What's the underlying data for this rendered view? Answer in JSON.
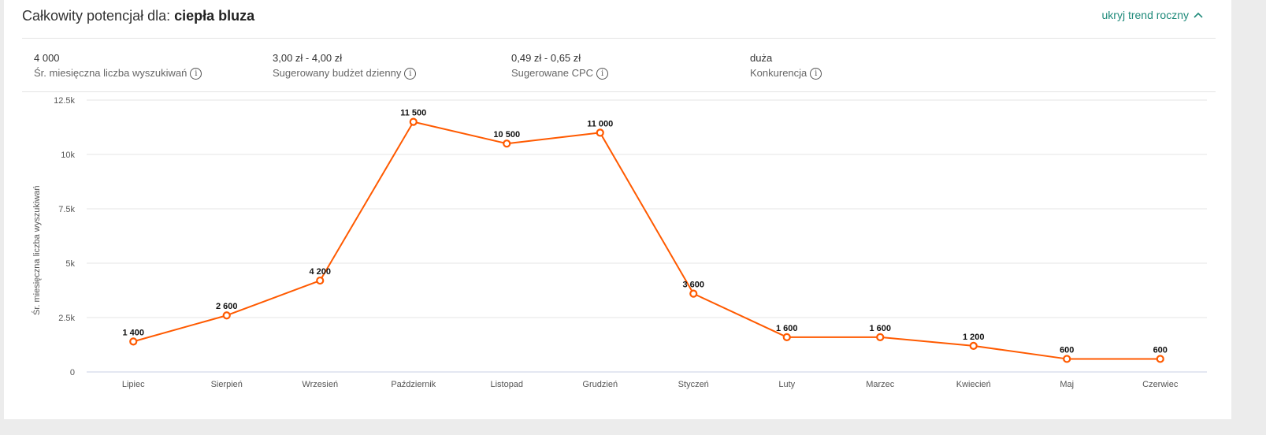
{
  "header": {
    "title_prefix": "Całkowity potencjał dla: ",
    "title_keyword": "ciepła bluza",
    "toggle_label": "ukryj trend roczny",
    "toggle_icon": "chevron-up-icon"
  },
  "stats": [
    {
      "value": "4 000",
      "label": "Śr. miesięczna liczba wyszukiwań",
      "icon": "info-icon"
    },
    {
      "value": "3,00 zł - 4,00 zł",
      "label": "Sugerowany budżet dzienny",
      "icon": "info-icon"
    },
    {
      "value": "0,49 zł - 0,65 zł",
      "label": "Sugerowane CPC",
      "icon": "info-icon"
    },
    {
      "value": "duża",
      "label": "Konkurencja",
      "icon": "info-icon"
    }
  ],
  "colors": {
    "line": "#ff5a00",
    "accent": "#1f8a7a",
    "grid": "#e6e6e6",
    "axis": "#c8cfe6"
  },
  "chart_data": {
    "type": "line",
    "title": "",
    "xlabel": "",
    "ylabel": "Śr. miesięczna liczba wyszukiwań",
    "ylim": [
      0,
      12500
    ],
    "yticks": [
      0,
      2500,
      5000,
      7500,
      10000,
      12500
    ],
    "ytick_labels": [
      "0",
      "2.5k",
      "5k",
      "7.5k",
      "10k",
      "12.5k"
    ],
    "grid": true,
    "categories": [
      "Lipiec",
      "Sierpień",
      "Wrzesień",
      "Październik",
      "Listopad",
      "Grudzień",
      "Styczeń",
      "Luty",
      "Marzec",
      "Kwiecień",
      "Maj",
      "Czerwiec"
    ],
    "values": [
      1400,
      2600,
      4200,
      11500,
      10500,
      11000,
      3600,
      1600,
      1600,
      1200,
      600,
      600
    ],
    "value_labels": [
      "1 400",
      "2 600",
      "4 200",
      "11 500",
      "10 500",
      "11 000",
      "3 600",
      "1 600",
      "1 600",
      "1 200",
      "600",
      "600"
    ]
  }
}
